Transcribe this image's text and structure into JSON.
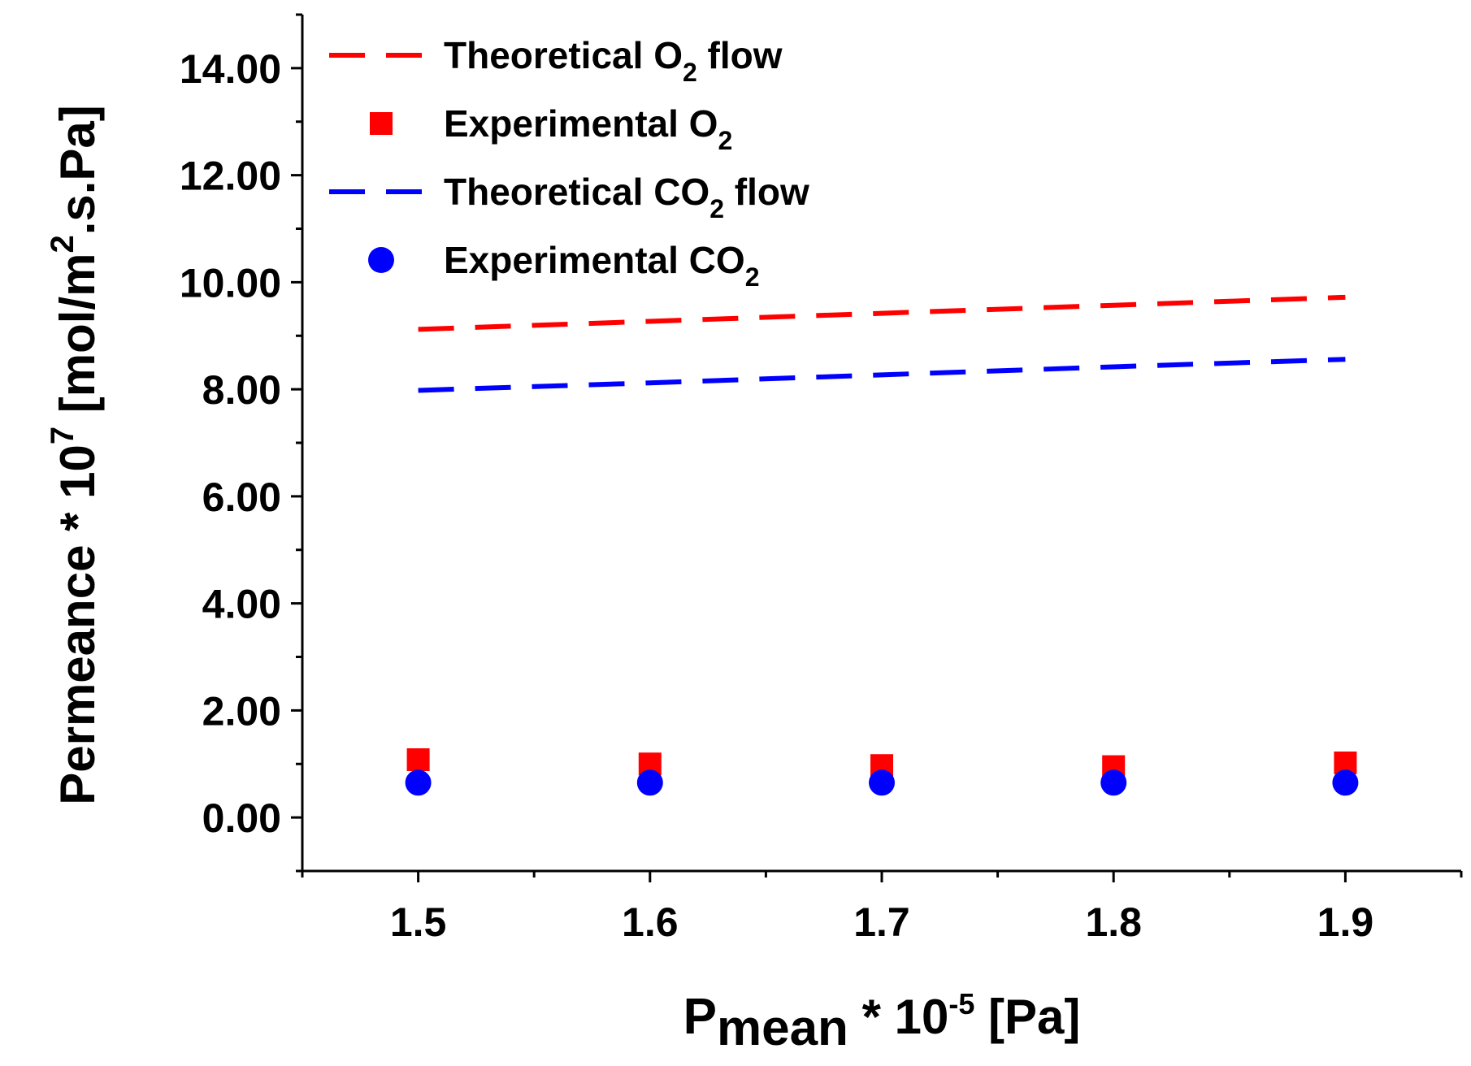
{
  "chart_data": {
    "type": "line",
    "title": "",
    "xlabel": {
      "main": "P",
      "sub": "mean",
      "mid": " * 10",
      "sup": "-5",
      "tail": " [Pa]"
    },
    "ylabel": {
      "main": "Permeance * 10",
      "sup": "7",
      "mid": " [mol/m",
      "sup2": "2",
      "tail": ".s.Pa]"
    },
    "xlim": [
      1.45,
      1.95
    ],
    "ylim": [
      -1.0,
      15.0
    ],
    "x_ticks": [
      1.5,
      1.6,
      1.7,
      1.8,
      1.9
    ],
    "x_tick_labels": [
      "1.5",
      "1.6",
      "1.7",
      "1.8",
      "1.9"
    ],
    "y_ticks": [
      0,
      2,
      4,
      6,
      8,
      10,
      12,
      14
    ],
    "y_tick_labels": [
      "0.00",
      "2.00",
      "4.00",
      "6.00",
      "8.00",
      "10.00",
      "12.00",
      "14.00"
    ],
    "legend_position": "top-left",
    "series": [
      {
        "name": "Theoretical O2 flow",
        "label": {
          "pre": "Theoretical O",
          "sub": "2",
          "post": " flow"
        },
        "kind": "dashed-line",
        "color": "#ff0000",
        "x": [
          1.5,
          1.6,
          1.7,
          1.8,
          1.9
        ],
        "values": [
          9.12,
          9.27,
          9.42,
          9.57,
          9.72
        ]
      },
      {
        "name": "Experimental O2",
        "label": {
          "pre": "Experimental O",
          "sub": "2",
          "post": ""
        },
        "kind": "square-markers",
        "color": "#ff0000",
        "x": [
          1.5,
          1.6,
          1.7,
          1.8,
          1.9
        ],
        "values": [
          1.08,
          1.0,
          0.97,
          0.95,
          1.02
        ]
      },
      {
        "name": "Theoretical CO2 flow",
        "label": {
          "pre": "Theoretical CO",
          "sub": "2",
          "post": " flow"
        },
        "kind": "dashed-line",
        "color": "#0000ff",
        "x": [
          1.5,
          1.6,
          1.7,
          1.8,
          1.9
        ],
        "values": [
          7.98,
          8.12,
          8.27,
          8.42,
          8.56
        ]
      },
      {
        "name": "Experimental CO2",
        "label": {
          "pre": "Experimental CO",
          "sub": "2",
          "post": ""
        },
        "kind": "circle-markers",
        "color": "#0000ff",
        "x": [
          1.5,
          1.6,
          1.7,
          1.8,
          1.9
        ],
        "values": [
          0.65,
          0.65,
          0.65,
          0.65,
          0.65
        ]
      }
    ]
  }
}
